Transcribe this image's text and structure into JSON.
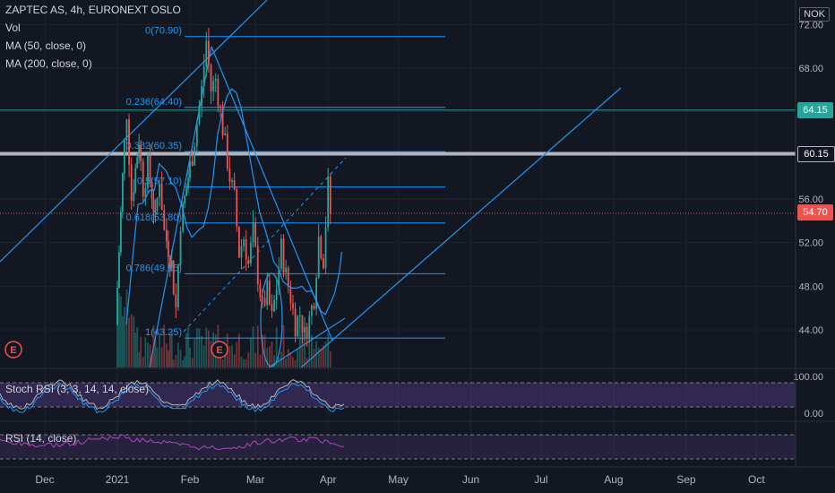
{
  "header": {
    "symbol": "ZAPTEC AS, 4h, EURONEXT OSLO",
    "indicators": [
      "Vol",
      "MA (50, close, 0)",
      "MA (200, close, 0)"
    ]
  },
  "currency_badge": "NOK",
  "price_tags": [
    {
      "value": "64.15",
      "color": "#26a69a"
    },
    {
      "value": "60.15",
      "color": "#131722"
    },
    {
      "value": "54.70",
      "color": "#ef5350"
    }
  ],
  "stoch_label": "Stoch RSI (3, 3, 14, 14, close)",
  "rsi_label": "RSI (14, close)",
  "chart_data": {
    "type": "candlestick",
    "title": "ZAPTEC AS, 4h, EURONEXT OSLO",
    "x_ticks": [
      "Dec",
      "2021",
      "Feb",
      "Mar",
      "Apr",
      "May",
      "Jun",
      "Jul",
      "Aug",
      "Sep",
      "Oct"
    ],
    "y_ticks": [
      "72.00",
      "68.00",
      "64.00",
      "60.00",
      "56.00",
      "52.00",
      "48.00",
      "44.00"
    ],
    "ylim": [
      40.5,
      73.5
    ],
    "last_price": 54.7,
    "horizontal_levels": [
      64.15,
      60.15
    ],
    "fibonacci": [
      {
        "label": "0(70.90)",
        "value": 70.9
      },
      {
        "label": "0.236(64.40)",
        "value": 64.4
      },
      {
        "label": "0.382(60.35)",
        "value": 60.35
      },
      {
        "label": "0.5(57.10)",
        "value": 57.1
      },
      {
        "label": "0.618(53.80)",
        "value": 53.8
      },
      {
        "label": "0.786(49.15)",
        "value": 49.15
      },
      {
        "label": "1(43.25)",
        "value": 43.25
      }
    ],
    "price_path": [
      {
        "d": "2021-01-01",
        "v": 44.5
      },
      {
        "d": "2021-01-04",
        "v": 58.0
      },
      {
        "d": "2021-01-06",
        "v": 64.0
      },
      {
        "d": "2021-01-08",
        "v": 56.0
      },
      {
        "d": "2021-01-11",
        "v": 61.5
      },
      {
        "d": "2021-01-13",
        "v": 57.0
      },
      {
        "d": "2021-01-15",
        "v": 59.0
      },
      {
        "d": "2021-01-18",
        "v": 54.0
      },
      {
        "d": "2021-01-20",
        "v": 58.0
      },
      {
        "d": "2021-01-22",
        "v": 53.0
      },
      {
        "d": "2021-01-25",
        "v": 50.0
      },
      {
        "d": "2021-01-27",
        "v": 46.0
      },
      {
        "d": "2021-01-29",
        "v": 54.0
      },
      {
        "d": "2021-02-01",
        "v": 58.0
      },
      {
        "d": "2021-02-03",
        "v": 60.0
      },
      {
        "d": "2021-02-05",
        "v": 63.0
      },
      {
        "d": "2021-02-07",
        "v": 66.0
      },
      {
        "d": "2021-02-09",
        "v": 70.5
      },
      {
        "d": "2021-02-11",
        "v": 66.0
      },
      {
        "d": "2021-02-13",
        "v": 67.0
      },
      {
        "d": "2021-02-15",
        "v": 64.0
      },
      {
        "d": "2021-02-17",
        "v": 61.0
      },
      {
        "d": "2021-02-19",
        "v": 58.0
      },
      {
        "d": "2021-02-21",
        "v": 56.0
      },
      {
        "d": "2021-02-23",
        "v": 51.0
      },
      {
        "d": "2021-02-25",
        "v": 52.5
      },
      {
        "d": "2021-02-27",
        "v": 50.0
      },
      {
        "d": "2021-03-01",
        "v": 53.0
      },
      {
        "d": "2021-03-03",
        "v": 49.0
      },
      {
        "d": "2021-03-05",
        "v": 46.0
      },
      {
        "d": "2021-03-07",
        "v": 47.5
      },
      {
        "d": "2021-03-09",
        "v": 45.0
      },
      {
        "d": "2021-03-11",
        "v": 48.0
      },
      {
        "d": "2021-03-13",
        "v": 51.5
      },
      {
        "d": "2021-03-15",
        "v": 49.0
      },
      {
        "d": "2021-03-17",
        "v": 47.0
      },
      {
        "d": "2021-03-19",
        "v": 44.5
      },
      {
        "d": "2021-03-21",
        "v": 45.5
      },
      {
        "d": "2021-03-23",
        "v": 43.5
      },
      {
        "d": "2021-03-25",
        "v": 45.0
      },
      {
        "d": "2021-03-27",
        "v": 47.0
      },
      {
        "d": "2021-03-29",
        "v": 52.5
      },
      {
        "d": "2021-03-31",
        "v": 50.5
      },
      {
        "d": "2021-04-02",
        "v": 57.2
      },
      {
        "d": "2021-04-03",
        "v": 54.7
      }
    ],
    "stoch_rsi_range": [
      0,
      100
    ],
    "stoch_rsi_ticks": [
      "100.00",
      "0.00"
    ]
  }
}
